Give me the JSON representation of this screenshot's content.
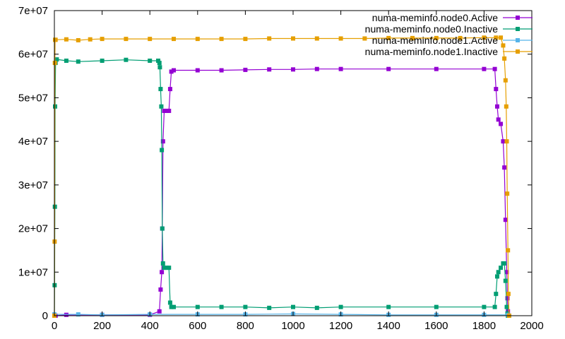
{
  "chart_data": {
    "type": "line",
    "title": "",
    "xlabel": "",
    "ylabel": "",
    "xlim": [
      0,
      2000
    ],
    "ylim": [
      0,
      70000000
    ],
    "grid": false,
    "legend_position": "top-right",
    "x_ticks": [
      {
        "value": 0,
        "label": "0"
      },
      {
        "value": 200,
        "label": "200"
      },
      {
        "value": 400,
        "label": "400"
      },
      {
        "value": 600,
        "label": "600"
      },
      {
        "value": 800,
        "label": "800"
      },
      {
        "value": 1000,
        "label": "1000"
      },
      {
        "value": 1200,
        "label": "1200"
      },
      {
        "value": 1400,
        "label": "1400"
      },
      {
        "value": 1600,
        "label": "1600"
      },
      {
        "value": 1800,
        "label": "1800"
      },
      {
        "value": 2000,
        "label": "2000"
      }
    ],
    "y_ticks": [
      {
        "value": 0,
        "label": "0"
      },
      {
        "value": 10000000,
        "label": "1e+07"
      },
      {
        "value": 20000000,
        "label": "2e+07"
      },
      {
        "value": 30000000,
        "label": "3e+07"
      },
      {
        "value": 40000000,
        "label": "4e+07"
      },
      {
        "value": 50000000,
        "label": "5e+07"
      },
      {
        "value": 60000000,
        "label": "6e+07"
      },
      {
        "value": 70000000,
        "label": "7e+07"
      }
    ],
    "series": [
      {
        "name": "numa-meminfo.node0.Active",
        "color": "#9400d3",
        "x": [
          0,
          5,
          50,
          200,
          400,
          440,
          445,
          450,
          452,
          455,
          460,
          470,
          480,
          485,
          490,
          500,
          600,
          700,
          800,
          900,
          1000,
          1100,
          1200,
          1400,
          1600,
          1800,
          1845,
          1850,
          1855,
          1860,
          1870,
          1880,
          1885,
          1890,
          1895,
          1898,
          1900,
          1905
        ],
        "y": [
          0,
          0,
          200000,
          200000,
          200000,
          1000000,
          6000000,
          10000000,
          20000000,
          40000000,
          47000000,
          47000000,
          47000000,
          52000000,
          56000000,
          56300000,
          56300000,
          56300000,
          56400000,
          56500000,
          56500000,
          56600000,
          56600000,
          56600000,
          56600000,
          56600000,
          56600000,
          52000000,
          48000000,
          45000000,
          44000000,
          40000000,
          34000000,
          22000000,
          10000000,
          4000000,
          1000000,
          0
        ]
      },
      {
        "name": "numa-meminfo.node0.Inactive",
        "color": "#009e73",
        "x": [
          0,
          1,
          2,
          3,
          5,
          10,
          50,
          100,
          200,
          300,
          400,
          435,
          440,
          442,
          445,
          448,
          450,
          452,
          455,
          460,
          470,
          480,
          485,
          490,
          500,
          600,
          700,
          800,
          900,
          1000,
          1100,
          1200,
          1400,
          1600,
          1800,
          1845,
          1850,
          1855,
          1860,
          1870,
          1880,
          1885,
          1890,
          1895,
          1898,
          1900,
          1905
        ],
        "y": [
          0,
          7000000,
          25000000,
          48000000,
          58000000,
          58800000,
          58500000,
          58300000,
          58500000,
          58700000,
          58500000,
          58500000,
          58000000,
          57000000,
          52000000,
          48000000,
          38000000,
          20000000,
          12000000,
          11000000,
          11000000,
          11000000,
          3000000,
          2000000,
          2000000,
          2000000,
          2000000,
          2000000,
          1800000,
          2000000,
          1800000,
          2000000,
          2000000,
          2000000,
          2000000,
          2000000,
          5000000,
          9000000,
          10000000,
          11000000,
          12000000,
          12000000,
          8000000,
          2000000,
          500000,
          0,
          0
        ]
      },
      {
        "name": "numa-meminfo.node1.Active",
        "color": "#56b4e9",
        "x": [
          0,
          100,
          200,
          400,
          600,
          800,
          1000,
          1200,
          1400,
          1600,
          1800,
          1900,
          1905
        ],
        "y": [
          300000,
          300000,
          200000,
          300000,
          300000,
          300000,
          400000,
          300000,
          200000,
          200000,
          200000,
          200000,
          0
        ]
      },
      {
        "name": "numa-meminfo.node1.Inactive",
        "color": "#e69f00",
        "x": [
          0,
          1,
          2,
          3,
          5,
          50,
          100,
          150,
          200,
          300,
          400,
          500,
          600,
          700,
          800,
          900,
          1000,
          1100,
          1200,
          1300,
          1400,
          1500,
          1600,
          1700,
          1800,
          1850,
          1870,
          1880,
          1885,
          1890,
          1893,
          1895,
          1897,
          1900,
          1902,
          1905
        ],
        "y": [
          0,
          17000000,
          58000000,
          63300000,
          63300000,
          63400000,
          63200000,
          63400000,
          63500000,
          63500000,
          63500000,
          63500000,
          63500000,
          63500000,
          63500000,
          63600000,
          63600000,
          63600000,
          63600000,
          63600000,
          63700000,
          63700000,
          63700000,
          63700000,
          63800000,
          63800000,
          63800000,
          62000000,
          59000000,
          54000000,
          48000000,
          40000000,
          28000000,
          15000000,
          5000000,
          0
        ]
      }
    ]
  }
}
